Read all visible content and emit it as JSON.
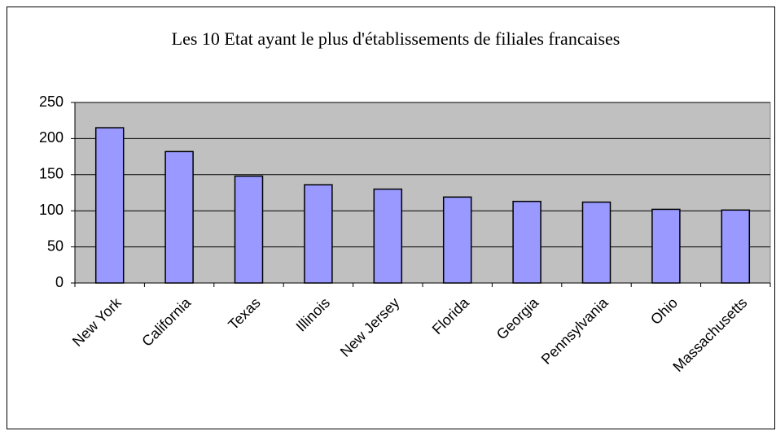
{
  "chart_data": {
    "type": "bar",
    "title": "Les 10 Etat ayant le plus d'établissements de filiales francaises",
    "categories": [
      "New York",
      "California",
      "Texas",
      "Illinois",
      "New Jersey",
      "Florida",
      "Georgia",
      "Pennsylvania",
      "Ohio",
      "Massachusetts"
    ],
    "values": [
      215,
      182,
      148,
      136,
      130,
      119,
      113,
      112,
      102,
      101
    ],
    "color": "#9999ff",
    "ylim": [
      0,
      250
    ],
    "yticks": [
      0,
      50,
      100,
      150,
      200,
      250
    ],
    "grid": true
  }
}
